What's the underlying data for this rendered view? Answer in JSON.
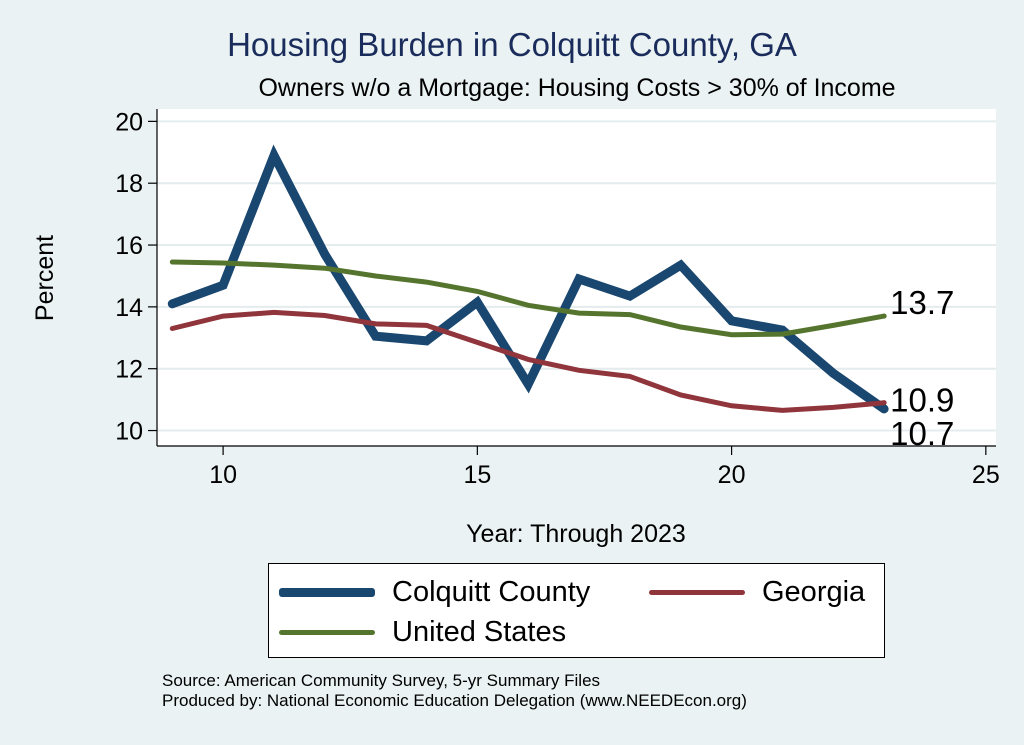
{
  "chart_data": {
    "type": "line",
    "title": "Housing Burden in Colquitt County, GA",
    "subtitle": "Owners w/o a Mortgage: Housing Costs > 30% of Income",
    "xlabel": "Year: Through 2023",
    "ylabel": "Percent",
    "xlim": [
      8.7,
      25.2
    ],
    "ylim": [
      9.5,
      20.4
    ],
    "xticks": [
      10,
      15,
      20,
      25
    ],
    "yticks": [
      10,
      12,
      14,
      16,
      18,
      20
    ],
    "grid": true,
    "legend_position": "bottom",
    "x": [
      9,
      10,
      11,
      12,
      13,
      14,
      15,
      16,
      17,
      18,
      19,
      20,
      21,
      22,
      23
    ],
    "series": [
      {
        "name": "Colquitt County",
        "color": "#1a476f",
        "values": [
          14.1,
          14.7,
          18.9,
          15.7,
          13.05,
          12.9,
          14.15,
          11.5,
          14.9,
          14.35,
          15.35,
          13.55,
          13.25,
          11.85,
          10.7
        ],
        "end_label": "10.7"
      },
      {
        "name": "Georgia",
        "color": "#90353b",
        "values": [
          13.3,
          13.7,
          13.82,
          13.72,
          13.45,
          13.4,
          12.85,
          12.3,
          11.95,
          11.75,
          11.15,
          10.8,
          10.65,
          10.75,
          10.9
        ],
        "end_label": "10.9"
      },
      {
        "name": "United States",
        "color": "#55752f",
        "values": [
          15.45,
          15.42,
          15.35,
          15.25,
          15.0,
          14.8,
          14.5,
          14.05,
          13.8,
          13.75,
          13.35,
          13.1,
          13.12,
          13.4,
          13.7
        ],
        "end_label": "13.7"
      }
    ]
  },
  "legend": {
    "items": [
      {
        "label": "Colquitt County",
        "color": "#1a476f"
      },
      {
        "label": "Georgia",
        "color": "#90353b"
      },
      {
        "label": "United States",
        "color": "#55752f"
      }
    ]
  },
  "notes": {
    "source": "Source: American Community Survey, 5-yr Summary Files",
    "produced_by": "Produced by: National Economic Education Delegation (www.NEEDEcon.org)"
  }
}
